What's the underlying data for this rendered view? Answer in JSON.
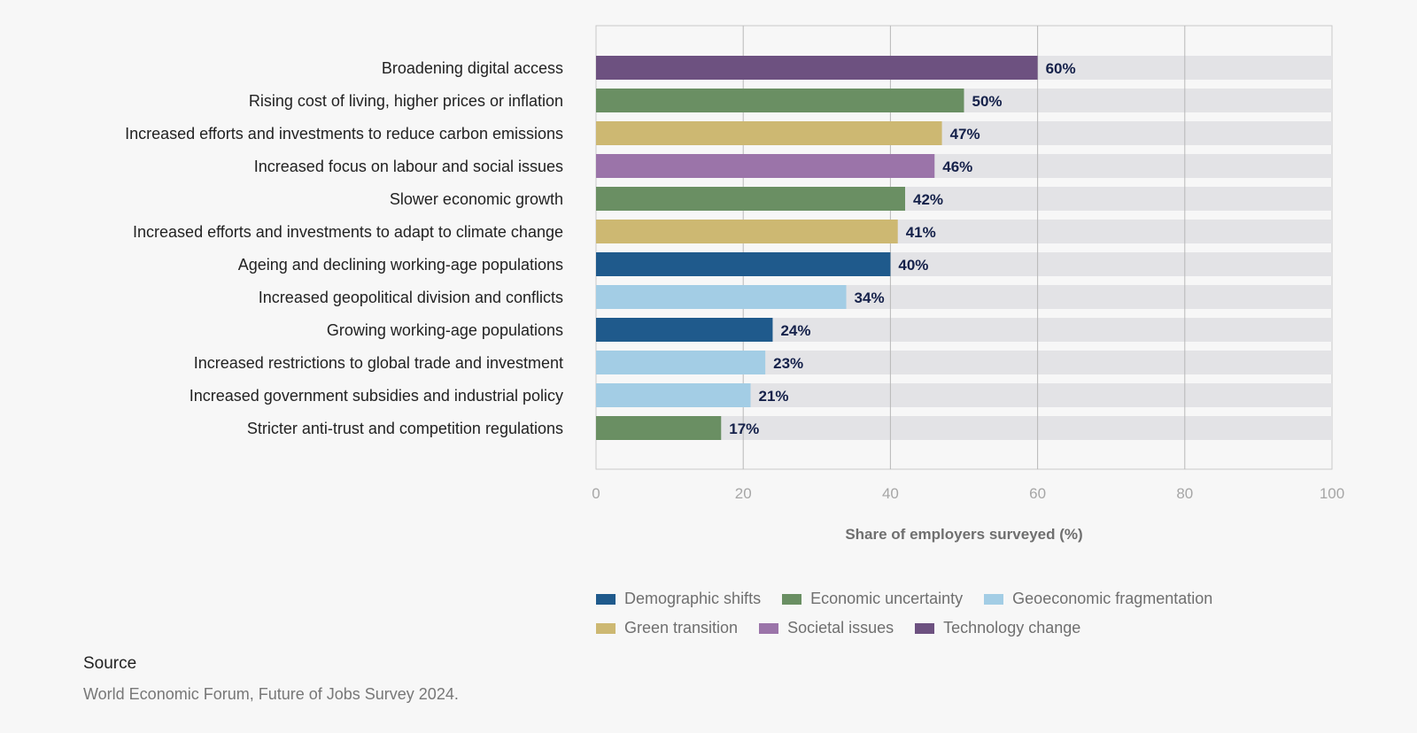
{
  "chart_data": {
    "type": "bar",
    "orientation": "horizontal",
    "categories": [
      "Broadening digital access",
      "Rising cost of living, higher prices or inflation",
      "Increased efforts and investments to reduce carbon emissions",
      "Increased focus on labour and social issues",
      "Slower economic growth",
      "Increased efforts and investments to adapt to climate change",
      "Ageing and declining working-age populations",
      "Increased geopolitical division and conflicts",
      "Growing working-age populations",
      "Increased restrictions to global trade and investment",
      "Increased government subsidies and industrial policy",
      "Stricter anti-trust and competition regulations"
    ],
    "values": [
      60,
      50,
      47,
      46,
      42,
      41,
      40,
      34,
      24,
      23,
      21,
      17
    ],
    "value_labels": [
      "60%",
      "50%",
      "47%",
      "46%",
      "42%",
      "41%",
      "40%",
      "34%",
      "24%",
      "23%",
      "21%",
      "17%"
    ],
    "groups": [
      "Technology change",
      "Economic uncertainty",
      "Green transition",
      "Societal issues",
      "Economic uncertainty",
      "Green transition",
      "Demographic shifts",
      "Geoeconomic fragmentation",
      "Demographic shifts",
      "Geoeconomic fragmentation",
      "Geoeconomic fragmentation",
      "Economic uncertainty"
    ],
    "xlabel": "Share of employers surveyed (%)",
    "xlim": [
      0,
      100
    ],
    "xticks": [
      0,
      20,
      40,
      60,
      80,
      100
    ],
    "grid": true,
    "legend_placement": "bottom",
    "legend": [
      {
        "name": "Demographic shifts",
        "color": "#1f5a8c"
      },
      {
        "name": "Economic uncertainty",
        "color": "#6a8f63"
      },
      {
        "name": "Geoeconomic fragmentation",
        "color": "#a3cde5"
      },
      {
        "name": "Green transition",
        "color": "#cdb872"
      },
      {
        "name": "Societal issues",
        "color": "#9b74a9"
      },
      {
        "name": "Technology change",
        "color": "#6d5180"
      }
    ],
    "track_color": "#e3e3e6"
  },
  "legend_rows": [
    [
      {
        "name": "Demographic shifts",
        "color": "#1f5a8c"
      },
      {
        "name": "Economic uncertainty",
        "color": "#6a8f63"
      },
      {
        "name": "Geoeconomic fragmentation",
        "color": "#a3cde5"
      }
    ],
    [
      {
        "name": "Green transition",
        "color": "#cdb872"
      },
      {
        "name": "Societal issues",
        "color": "#9b74a9"
      },
      {
        "name": "Technology change",
        "color": "#6d5180"
      }
    ]
  ],
  "source": {
    "title": "Source",
    "text": "World Economic Forum, Future of Jobs Survey 2024."
  }
}
